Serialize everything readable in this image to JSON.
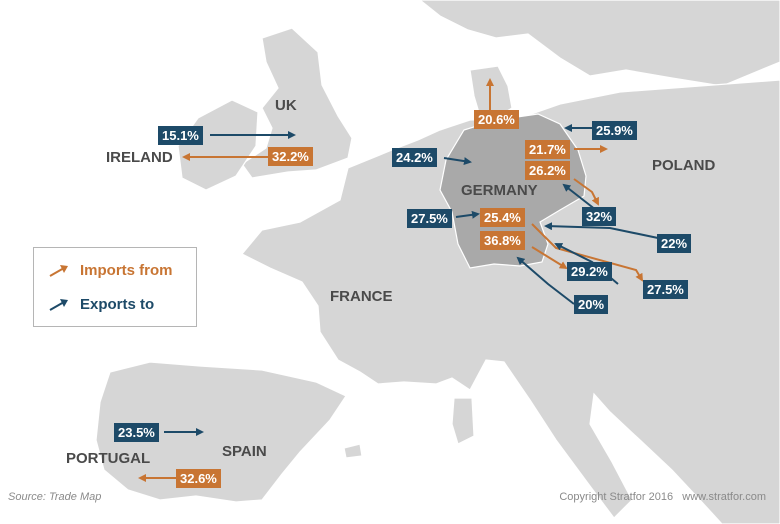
{
  "colors": {
    "imports": "#c87533",
    "exports": "#1d4a68",
    "land": "#d6d6d6",
    "germany": "#a9a9a9",
    "border": "#ffffff",
    "label": "#4a4a4a"
  },
  "legend": {
    "imports_label": "Imports from",
    "exports_label": "Exports to"
  },
  "countries": {
    "uk": "UK",
    "ireland": "IRELAND",
    "germany": "GERMANY",
    "poland": "POLAND",
    "france": "FRANCE",
    "spain": "SPAIN",
    "portugal": "PORTUGAL"
  },
  "flows": {
    "uk_export": "15.1%",
    "ireland_import": "32.2%",
    "denmark_import": "20.6%",
    "poland_export": "25.9%",
    "benelux_export": "24.2%",
    "poland_import": "21.7%",
    "czech_import": "26.2%",
    "czech_export": "32%",
    "france_export": "27.5%",
    "austria_import": "25.4%",
    "hungary_export": "22%",
    "austria_import_2": "36.8%",
    "slovakia_export": "29.2%",
    "hungary_import": "27.5%",
    "slovenia_export": "20%",
    "spain_export": "23.5%",
    "portugal_import": "32.6%"
  },
  "footer": {
    "source": "Source: Trade Map",
    "copyright": "Copyright Stratfor 2016   www.stratfor.com"
  }
}
